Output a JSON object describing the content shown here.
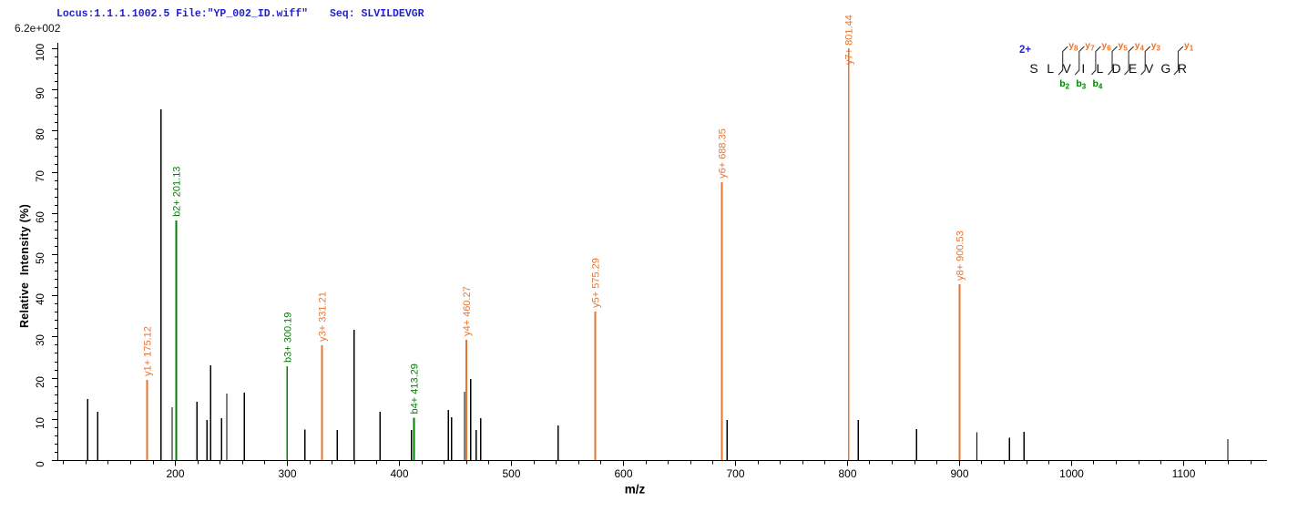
{
  "header": {
    "locus_file_text": "Locus:1.1.1.1002.5 File:\"YP_002_ID.wiff\"",
    "seq_text": "Seq: SLVILDEVGR",
    "base_peak_intensity": "6.2e+002"
  },
  "colors": {
    "y_ion": "#E8752F",
    "b_ion": "#008000",
    "unassigned": "#000000",
    "axis": "#000000",
    "header_blue": "#2222CC",
    "charge_blue": "#2424DD"
  },
  "sequence_panel": {
    "charge_label": "2+",
    "residues": [
      "S",
      "L",
      "V",
      "I",
      "L",
      "D",
      "E",
      "V",
      "G",
      "R"
    ],
    "cuts": [
      {
        "after_residue": 2,
        "y_sub": "8",
        "b_sub": "2"
      },
      {
        "after_residue": 3,
        "y_sub": "7",
        "b_sub": "3"
      },
      {
        "after_residue": 4,
        "y_sub": "6",
        "b_sub": "4"
      },
      {
        "after_residue": 5,
        "y_sub": "5"
      },
      {
        "after_residue": 6,
        "y_sub": "4"
      },
      {
        "after_residue": 7,
        "y_sub": "3"
      },
      {
        "after_residue": 9,
        "y_sub": "1"
      }
    ],
    "y_prefix": "y",
    "b_prefix": "b"
  },
  "chart_data": {
    "type": "bar",
    "subtype": "ms2-fragment-spectrum",
    "title": "",
    "xlabel": "m/z",
    "ylabel": "Relative  Intensity (%)",
    "grid": false,
    "legend": false,
    "x_axis": {
      "min": 95,
      "max": 1175,
      "major_ticks": [
        200,
        300,
        400,
        500,
        600,
        700,
        800,
        900,
        1000,
        1100
      ],
      "minor_tick_step": 20,
      "minor_tick_start": 100,
      "minor_tick_end": 1160
    },
    "y_axis": {
      "min": 0,
      "max": 100,
      "major_ticks": [
        0,
        10,
        20,
        30,
        40,
        50,
        60,
        70,
        80,
        90,
        100
      ],
      "minor_tick_step": 2,
      "labels_rotated": true
    },
    "peaks": [
      {
        "mz": 122.0,
        "intensity_pct": 14.8,
        "ion": "unassigned"
      },
      {
        "mz": 131.0,
        "intensity_pct": 11.7,
        "ion": "unassigned"
      },
      {
        "mz": 175.12,
        "intensity_pct": 19.5,
        "ion": "y",
        "label": "y1+ 175.12"
      },
      {
        "mz": 187.5,
        "intensity_pct": 85.2,
        "ion": "unassigned"
      },
      {
        "mz": 197.5,
        "intensity_pct": 12.8,
        "ion": "unassigned"
      },
      {
        "mz": 201.13,
        "intensity_pct": 58.2,
        "ion": "b",
        "label": "b2+ 201.13"
      },
      {
        "mz": 219.5,
        "intensity_pct": 14.2,
        "ion": "unassigned"
      },
      {
        "mz": 228.5,
        "intensity_pct": 9.7,
        "ion": "unassigned"
      },
      {
        "mz": 231.7,
        "intensity_pct": 23.0,
        "ion": "unassigned"
      },
      {
        "mz": 241.5,
        "intensity_pct": 10.2,
        "ion": "unassigned"
      },
      {
        "mz": 246.3,
        "intensity_pct": 16.2,
        "ion": "unassigned"
      },
      {
        "mz": 261.8,
        "intensity_pct": 16.4,
        "ion": "unassigned"
      },
      {
        "mz": 300.19,
        "intensity_pct": 22.8,
        "ion": "b",
        "label": "b3+ 300.19"
      },
      {
        "mz": 316.0,
        "intensity_pct": 7.4,
        "ion": "unassigned"
      },
      {
        "mz": 331.21,
        "intensity_pct": 27.9,
        "ion": "y",
        "label": "y3+ 331.21"
      },
      {
        "mz": 345.0,
        "intensity_pct": 7.3,
        "ion": "unassigned"
      },
      {
        "mz": 360.0,
        "intensity_pct": 31.6,
        "ion": "unassigned"
      },
      {
        "mz": 383.0,
        "intensity_pct": 11.7,
        "ion": "unassigned"
      },
      {
        "mz": 411.0,
        "intensity_pct": 7.3,
        "ion": "unassigned"
      },
      {
        "mz": 413.29,
        "intensity_pct": 10.3,
        "ion": "b",
        "label": "b4+ 413.29"
      },
      {
        "mz": 444.0,
        "intensity_pct": 12.2,
        "ion": "unassigned"
      },
      {
        "mz": 447.0,
        "intensity_pct": 10.4,
        "ion": "unassigned"
      },
      {
        "mz": 458.5,
        "intensity_pct": 16.6,
        "ion": "unassigned"
      },
      {
        "mz": 460.27,
        "intensity_pct": 29.2,
        "ion": "y",
        "label": "y4+ 460.27"
      },
      {
        "mz": 464.0,
        "intensity_pct": 19.7,
        "ion": "unassigned"
      },
      {
        "mz": 469.0,
        "intensity_pct": 7.3,
        "ion": "unassigned"
      },
      {
        "mz": 473.0,
        "intensity_pct": 10.2,
        "ion": "unassigned"
      },
      {
        "mz": 542.0,
        "intensity_pct": 8.4,
        "ion": "unassigned"
      },
      {
        "mz": 575.29,
        "intensity_pct": 36.1,
        "ion": "y",
        "label": "y5+ 575.29"
      },
      {
        "mz": 688.35,
        "intensity_pct": 67.5,
        "ion": "y",
        "label": "y6+ 688.35"
      },
      {
        "mz": 693.0,
        "intensity_pct": 9.7,
        "ion": "unassigned"
      },
      {
        "mz": 801.44,
        "intensity_pct": 100.0,
        "ion": "y",
        "label": "y7+ 801.44"
      },
      {
        "mz": 810.0,
        "intensity_pct": 9.7,
        "ion": "unassigned"
      },
      {
        "mz": 862.0,
        "intensity_pct": 7.5,
        "ion": "unassigned"
      },
      {
        "mz": 900.53,
        "intensity_pct": 42.7,
        "ion": "y",
        "label": "y8+ 900.53"
      },
      {
        "mz": 916.0,
        "intensity_pct": 6.7,
        "ion": "unassigned"
      },
      {
        "mz": 945.0,
        "intensity_pct": 5.4,
        "ion": "unassigned"
      },
      {
        "mz": 958.0,
        "intensity_pct": 6.9,
        "ion": "unassigned"
      },
      {
        "mz": 1140.0,
        "intensity_pct": 5.1,
        "ion": "unassigned"
      }
    ]
  }
}
